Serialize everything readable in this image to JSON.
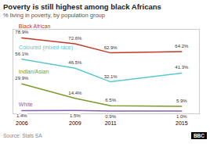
{
  "chart_data": {
    "type": "line",
    "title": "Poverty is still highest among black Africans",
    "subtitle": "% living in poverty, by population group",
    "source": "Source: Stats SA",
    "annotations": [
      "BBC"
    ],
    "x": [
      2006,
      2009,
      2011,
      2015
    ],
    "series": [
      {
        "name": "Black African",
        "color": "#c0392b",
        "values": [
          78.9,
          72.6,
          62.9,
          64.2
        ],
        "value_labels": [
          "78.9%",
          "72.6%",
          "62.9%",
          "64.2%"
        ]
      },
      {
        "name": "Coloured (mixed race)",
        "color": "#5bc8d0",
        "values": [
          56.1,
          46.5,
          32.1,
          41.3
        ],
        "value_labels": [
          "56.1%",
          "46.5%",
          "32.1%",
          "41.3%"
        ]
      },
      {
        "name": "Indian/Asian",
        "color": "#7a9a2e",
        "values": [
          29.9,
          14.4,
          6.5,
          5.9
        ],
        "value_labels": [
          "29.9%",
          "14.4%",
          "6.5%",
          "5.9%"
        ]
      },
      {
        "name": "White",
        "color": "#8b5cb1",
        "values": [
          1.4,
          1.5,
          0.9,
          1.0
        ],
        "value_labels": [
          "1.4%",
          "1.5%",
          "0.9%",
          "1.0%"
        ]
      }
    ],
    "xlim": [
      2005.5,
      2016
    ],
    "xticks": [
      2006,
      2009,
      2011,
      2015
    ],
    "ylim": [
      -2,
      88
    ],
    "grid": false,
    "data_labels": true,
    "tick_labels": "x"
  }
}
